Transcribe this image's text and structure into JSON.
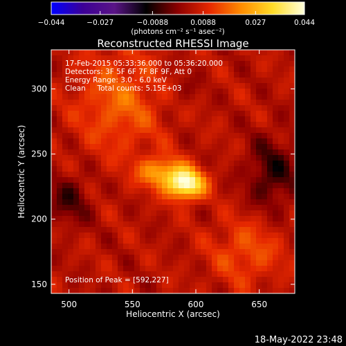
{
  "chart_data": {
    "type": "heatmap",
    "title": "Reconstructed RHESSI Image",
    "xlabel": "Heliocentric X (arcsec)",
    "ylabel": "Heliocentric Y (arcsec)",
    "xlim": [
      486,
      678
    ],
    "ylim": [
      143,
      330
    ],
    "xticks": [
      500,
      550,
      600,
      650
    ],
    "yticks": [
      150,
      200,
      250,
      300
    ],
    "colorbar": {
      "min": -0.044,
      "max": 0.044,
      "tick_labels": [
        "-0.044",
        "-0.027",
        "-0.0088",
        "0.0088",
        "0.027",
        "0.044"
      ],
      "unit_label": "(photons cm⁻² s⁻¹ asec⁻²)",
      "colors": [
        "#0000ff",
        "#3c0096",
        "#5a1486",
        "#000000",
        "#8c0000",
        "#e62800",
        "#ff8c00",
        "#ffdc28",
        "#ffffdc"
      ]
    },
    "info_lines": [
      "17-Feb-2015 05:33:36.000 to 05:36:20.000",
      "Detectors: 3F 5F 6F 7F 8F 9F, Att 0",
      "Energy Range: 3.0 - 6.0 keV",
      "Clean     Total counts: 5.15E+03"
    ],
    "peak_label": "Position of Peak = [592,227]",
    "peak": {
      "x": 592,
      "y": 227,
      "value": 0.044
    },
    "sources": [
      {
        "x": 592,
        "y": 227,
        "sigma_x": 10,
        "sigma_y": 8,
        "amp": 0.04
      },
      {
        "x": 572,
        "y": 236,
        "sigma_x": 12,
        "sigma_y": 8,
        "amp": 0.02
      },
      {
        "x": 540,
        "y": 290,
        "sigma_x": 24,
        "sigma_y": 28,
        "amp": 0.012
      },
      {
        "x": 640,
        "y": 175,
        "sigma_x": 20,
        "sigma_y": 18,
        "amp": 0.01
      },
      {
        "x": 660,
        "y": 235,
        "sigma_x": 14,
        "sigma_y": 20,
        "amp": -0.012
      },
      {
        "x": 500,
        "y": 215,
        "sigma_x": 12,
        "sigma_y": 14,
        "amp": -0.01
      },
      {
        "x": 590,
        "y": 300,
        "sigma_x": 10,
        "sigma_y": 10,
        "amp": -0.004
      }
    ]
  },
  "timestamp": "18-May-2022 23:48"
}
